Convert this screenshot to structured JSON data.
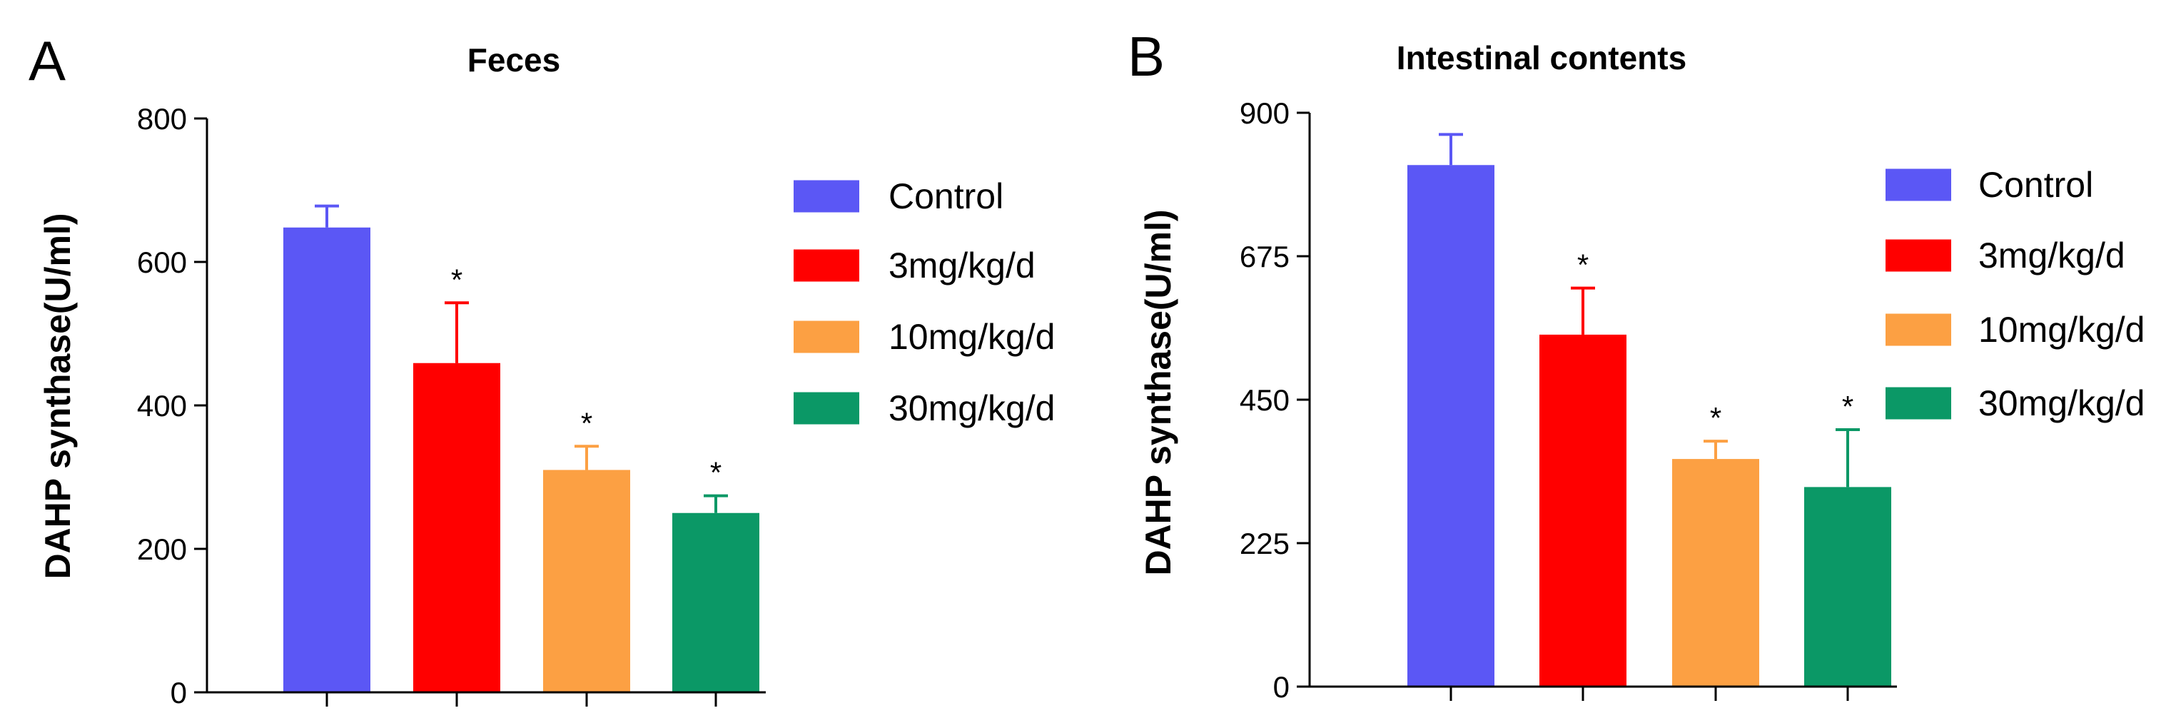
{
  "chart_data": [
    {
      "panel_label": "A",
      "type": "bar",
      "title": "Feces",
      "xlabel": "",
      "ylabel": "DAHP synthase(U/ml)",
      "ylim": [
        0,
        800
      ],
      "yticks": [
        0,
        200,
        400,
        600,
        800
      ],
      "categories": [
        "Control",
        "3mg/kg/d",
        "10mg/kg/d",
        "30mg/kg/d"
      ],
      "values": [
        648,
        459,
        310,
        250
      ],
      "errors": [
        30,
        84,
        33,
        24
      ],
      "significance": [
        "",
        "*",
        "*",
        "*"
      ],
      "colors": [
        "#5b57f5",
        "#ff0000",
        "#fca043",
        "#0b9866"
      ],
      "legend": [
        "Control",
        "3mg/kg/d",
        "10mg/kg/d",
        "30mg/kg/d"
      ]
    },
    {
      "panel_label": "B",
      "type": "bar",
      "title": "Intestinal contents",
      "xlabel": "",
      "ylabel": "DAHP synthase(U/ml)",
      "ylim": [
        0,
        900
      ],
      "yticks": [
        0,
        225,
        450,
        675,
        900
      ],
      "categories": [
        "Control",
        "3mg/kg/d",
        "10mg/kg/d",
        "30mg/kg/d"
      ],
      "values": [
        818,
        552,
        357,
        313
      ],
      "errors": [
        48,
        73,
        28,
        90
      ],
      "significance": [
        "",
        "*",
        "*",
        "*"
      ],
      "colors": [
        "#5b57f5",
        "#ff0000",
        "#fca043",
        "#0b9866"
      ],
      "legend": [
        "Control",
        "3mg/kg/d",
        "10mg/kg/d",
        "30mg/kg/d"
      ]
    }
  ]
}
